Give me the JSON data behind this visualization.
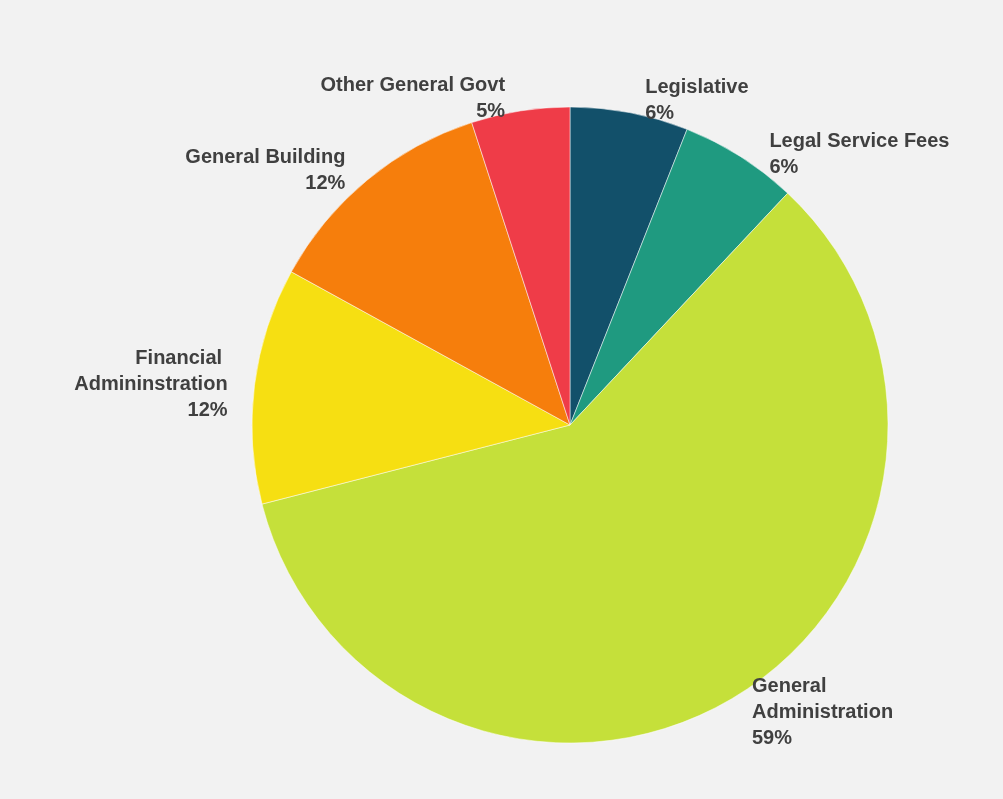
{
  "chart_data": {
    "type": "pie",
    "categories": [
      "Legislative",
      "Legal Service Fees",
      "General Administration",
      "Financial Admininstration",
      "General Building",
      "Other General Govt"
    ],
    "values": [
      6,
      6,
      59,
      12,
      12,
      5
    ],
    "value_labels": [
      "6%",
      "6%",
      "59%",
      "12%",
      "12%",
      "5%"
    ],
    "colors": [
      "#12506a",
      "#1f9a80",
      "#c5e03a",
      "#f6df12",
      "#f67e0c",
      "#ef3c48"
    ],
    "legend": false
  }
}
